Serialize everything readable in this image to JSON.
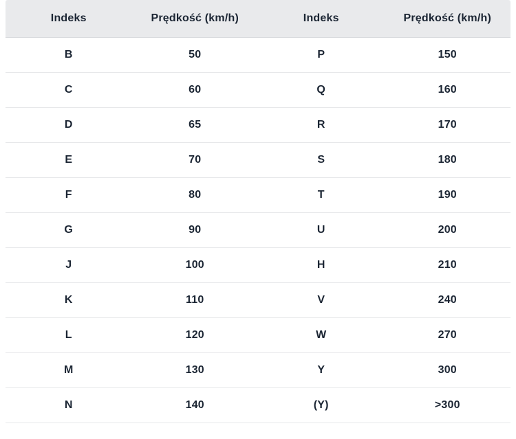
{
  "chart_data": {
    "type": "table",
    "title": "",
    "columns": [
      "Indeks",
      "Prędkość (km/h)",
      "Indeks",
      "Prędkość (km/h)"
    ],
    "rows": [
      [
        "B",
        "50",
        "P",
        "150"
      ],
      [
        "C",
        "60",
        "Q",
        "160"
      ],
      [
        "D",
        "65",
        "R",
        "170"
      ],
      [
        "E",
        "70",
        "S",
        "180"
      ],
      [
        "F",
        "80",
        "T",
        "190"
      ],
      [
        "G",
        "90",
        "U",
        "200"
      ],
      [
        "J",
        "100",
        "H",
        "210"
      ],
      [
        "K",
        "110",
        "V",
        "240"
      ],
      [
        "L",
        "120",
        "W",
        "270"
      ],
      [
        "M",
        "130",
        "Y",
        "300"
      ],
      [
        "N",
        "140",
        "(Y)",
        ">300"
      ]
    ]
  },
  "colors": {
    "header_bg": "#e9eaec",
    "header_border": "#d8dadd",
    "row_border": "#e7e8ea",
    "text": "#1b2533",
    "page_bg": "#ffffff"
  }
}
